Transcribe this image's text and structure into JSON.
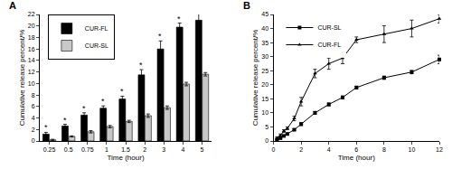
{
  "chart_data": [
    {
      "type": "bar",
      "title": "A",
      "x_label": "Time (hour)",
      "y_label": "Cumulative release percent/%",
      "categories": [
        "0.25",
        "0.5",
        "0.75",
        "1",
        "1.5",
        "2",
        "3",
        "4",
        "5"
      ],
      "ylim": [
        0,
        22
      ],
      "yticks": [
        0,
        2,
        4,
        6,
        8,
        10,
        12,
        14,
        16,
        18,
        20,
        22
      ],
      "grid": false,
      "legend": "upper left",
      "series": [
        {
          "name": "CUR-FL",
          "color": "#000000",
          "values": [
            1.2,
            2.6,
            4.5,
            5.7,
            7.3,
            11.5,
            16.0,
            19.8,
            21.0
          ],
          "error": [
            0.3,
            0.3,
            0.4,
            0.4,
            0.5,
            0.9,
            1.4,
            0.7,
            1.5
          ]
        },
        {
          "name": "CUR-SL",
          "color": "#c8c8c8",
          "values": [
            0.2,
            0.8,
            1.6,
            2.5,
            3.4,
            4.4,
            5.8,
            9.9,
            11.6
          ],
          "error": [
            0.1,
            0.1,
            0.2,
            0.2,
            0.2,
            0.3,
            0.3,
            0.3,
            0.3
          ]
        }
      ],
      "annotations": [
        {
          "x": "0.25",
          "text": "*"
        },
        {
          "x": "0.5",
          "text": "*"
        },
        {
          "x": "0.75",
          "text": "*"
        },
        {
          "x": "1",
          "text": "*"
        },
        {
          "x": "1.5",
          "text": "*"
        },
        {
          "x": "2",
          "text": "*"
        },
        {
          "x": "3",
          "text": "*"
        },
        {
          "x": "4",
          "text": "*"
        },
        {
          "x": "5",
          "text": "*"
        }
      ]
    },
    {
      "type": "line",
      "title": "B",
      "x_label": "Time (hour)",
      "y_label": "Cumulative release percent/%",
      "x": [
        0.25,
        0.5,
        0.75,
        1,
        1.5,
        2,
        3,
        4,
        5,
        6,
        8,
        10,
        12
      ],
      "xlim": [
        0,
        12
      ],
      "xticks": [
        0,
        2,
        4,
        6,
        8,
        10,
        12
      ],
      "ylim": [
        0,
        45
      ],
      "yticks": [
        0,
        5,
        10,
        15,
        20,
        25,
        30,
        35,
        40,
        45
      ],
      "grid": false,
      "legend": "upper left",
      "series": [
        {
          "name": "CUR-SL",
          "color": "#000000",
          "marker": "square",
          "values": [
            0.5,
            1.0,
            1.8,
            2.5,
            4.0,
            6.0,
            10.0,
            13.0,
            15.5,
            19.0,
            22.5,
            24.5,
            29.0
          ],
          "error": [
            0.2,
            0.2,
            0.3,
            0.3,
            0.3,
            0.5,
            0.5,
            0.5,
            0.5,
            0.5,
            0.6,
            0.6,
            1.5
          ]
        },
        {
          "name": "CUR-FL",
          "color": "#000000",
          "marker": "triangle-up",
          "values": [
            1.0,
            2.0,
            3.5,
            4.5,
            8.0,
            14.0,
            24.0,
            27.5,
            29.5,
            36.0,
            38.0,
            40.0,
            43.5
          ],
          "error": [
            0.5,
            0.5,
            0.5,
            0.5,
            0.8,
            1.5,
            1.5,
            2.0,
            2.0,
            1.0,
            3.0,
            3.0,
            1.5
          ]
        }
      ]
    }
  ]
}
